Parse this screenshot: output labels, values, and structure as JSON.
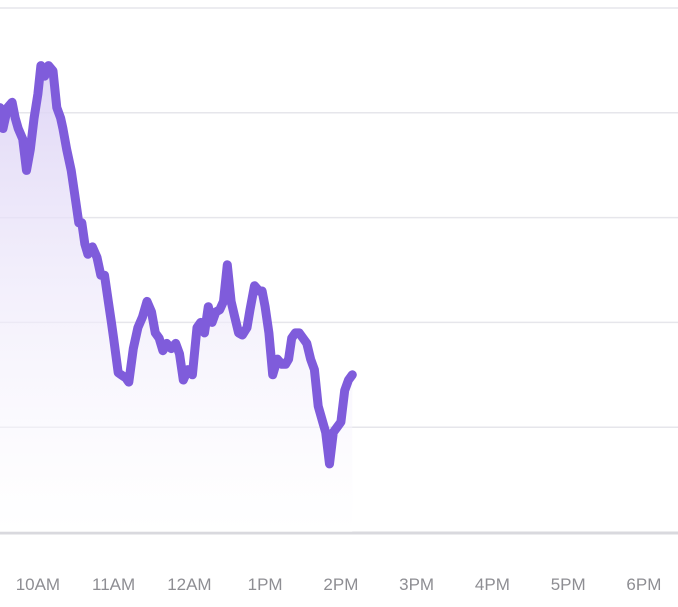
{
  "chart_data": {
    "type": "area",
    "title": "",
    "xlabel": "",
    "ylabel": "",
    "x_tick_labels": [
      "10AM",
      "11AM",
      "12AM",
      "1PM",
      "2PM",
      "3PM",
      "4PM",
      "5PM",
      "6PM"
    ],
    "x_range": [
      9.5,
      18.45
    ],
    "y_range": [
      0,
      5
    ],
    "y_grid_lines": [
      1,
      2,
      3,
      4,
      5
    ],
    "grid": true,
    "legend": "none",
    "series": [
      {
        "values": [
          [
            9.5,
            4.05
          ],
          [
            9.54,
            3.85
          ],
          [
            9.6,
            4.05
          ],
          [
            9.66,
            4.1
          ],
          [
            9.7,
            3.95
          ],
          [
            9.74,
            3.85
          ],
          [
            9.8,
            3.75
          ],
          [
            9.85,
            3.45
          ],
          [
            9.9,
            3.65
          ],
          [
            9.95,
            3.95
          ],
          [
            10.0,
            4.18
          ],
          [
            10.04,
            4.45
          ],
          [
            10.09,
            4.35
          ],
          [
            10.14,
            4.45
          ],
          [
            10.2,
            4.4
          ],
          [
            10.25,
            4.05
          ],
          [
            10.3,
            3.95
          ],
          [
            10.33,
            3.85
          ],
          [
            10.38,
            3.65
          ],
          [
            10.44,
            3.45
          ],
          [
            10.5,
            3.15
          ],
          [
            10.54,
            2.95
          ],
          [
            10.58,
            2.95
          ],
          [
            10.62,
            2.75
          ],
          [
            10.66,
            2.65
          ],
          [
            10.72,
            2.72
          ],
          [
            10.78,
            2.62
          ],
          [
            10.83,
            2.45
          ],
          [
            10.88,
            2.45
          ],
          [
            10.93,
            2.2
          ],
          [
            10.97,
            2.0
          ],
          [
            11.0,
            1.85
          ],
          [
            11.06,
            1.52
          ],
          [
            11.1,
            1.5
          ],
          [
            11.16,
            1.47
          ],
          [
            11.2,
            1.43
          ],
          [
            11.26,
            1.75
          ],
          [
            11.32,
            1.95
          ],
          [
            11.38,
            2.05
          ],
          [
            11.44,
            2.2
          ],
          [
            11.5,
            2.1
          ],
          [
            11.55,
            1.9
          ],
          [
            11.6,
            1.85
          ],
          [
            11.65,
            1.73
          ],
          [
            11.7,
            1.8
          ],
          [
            11.76,
            1.75
          ],
          [
            11.82,
            1.8
          ],
          [
            11.87,
            1.7
          ],
          [
            11.92,
            1.45
          ],
          [
            11.98,
            1.55
          ],
          [
            12.04,
            1.5
          ],
          [
            12.1,
            1.95
          ],
          [
            12.15,
            2.0
          ],
          [
            12.2,
            1.9
          ],
          [
            12.25,
            2.15
          ],
          [
            12.3,
            2.0
          ],
          [
            12.35,
            2.1
          ],
          [
            12.4,
            2.12
          ],
          [
            12.45,
            2.2
          ],
          [
            12.5,
            2.55
          ],
          [
            12.55,
            2.2
          ],
          [
            12.6,
            2.05
          ],
          [
            12.65,
            1.9
          ],
          [
            12.7,
            1.88
          ],
          [
            12.76,
            1.95
          ],
          [
            12.8,
            2.12
          ],
          [
            12.86,
            2.35
          ],
          [
            12.92,
            2.3
          ],
          [
            12.96,
            2.3
          ],
          [
            13.0,
            2.15
          ],
          [
            13.05,
            1.9
          ],
          [
            13.1,
            1.5
          ],
          [
            13.16,
            1.65
          ],
          [
            13.22,
            1.6
          ],
          [
            13.27,
            1.6
          ],
          [
            13.31,
            1.65
          ],
          [
            13.35,
            1.85
          ],
          [
            13.4,
            1.9
          ],
          [
            13.45,
            1.9
          ],
          [
            13.5,
            1.85
          ],
          [
            13.55,
            1.8
          ],
          [
            13.6,
            1.65
          ],
          [
            13.65,
            1.55
          ],
          [
            13.7,
            1.2
          ],
          [
            13.76,
            1.05
          ],
          [
            13.8,
            0.95
          ],
          [
            13.85,
            0.65
          ],
          [
            13.9,
            0.95
          ],
          [
            13.95,
            1.0
          ],
          [
            14.0,
            1.05
          ],
          [
            14.05,
            1.35
          ],
          [
            14.1,
            1.45
          ],
          [
            14.15,
            1.5
          ]
        ]
      }
    ],
    "colors": {
      "line": "#7f5cdb",
      "fill_top": "#dcd2f5",
      "fill_bottom": "#ffffff",
      "grid": "#e6e6eb",
      "baseline": "#d9d9de",
      "tick_text": "#8e8e93"
    }
  }
}
